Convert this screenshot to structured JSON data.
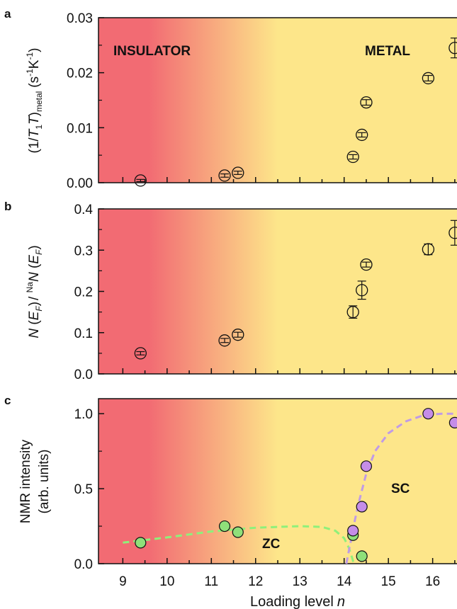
{
  "colors": {
    "insulator": "#f26b73",
    "metal": "#fde68a",
    "marker_open": "#ffffff",
    "marker_zc": "#8fe07a",
    "marker_sc": "#c58de8",
    "curve_zc": "#8ff07a",
    "curve_sc": "#c09be6",
    "axis": "#111111"
  },
  "xaxis": {
    "label": "Loading level",
    "label_italic": "n",
    "ticks": [
      "9",
      "10",
      "11",
      "12",
      "13",
      "14",
      "15",
      "16"
    ],
    "range": [
      8.45,
      16.55
    ]
  },
  "chart_data": [
    {
      "panel": "a",
      "type": "scatter",
      "ylabel": "(1/T1T)metal (s-1K-1)",
      "ylabel_parts": {
        "open": "(1/",
        "T": "T",
        "sub1": "1",
        "T2": "T",
        "close": ")",
        "sub": "metal",
        "unit": "(s",
        "sup1": "-1",
        "K": "K",
        "sup2": "-1",
        "end": ")"
      },
      "yticks": [
        "0.00",
        "0.01",
        "0.02",
        "0.03"
      ],
      "ylim": [
        0,
        0.03
      ],
      "annotations": [
        "INSULATOR",
        "METAL"
      ],
      "points": [
        {
          "x": 9.4,
          "y": 0.0004,
          "err": 0.0002
        },
        {
          "x": 11.3,
          "y": 0.0013,
          "err": 0.0003
        },
        {
          "x": 11.6,
          "y": 0.0018,
          "err": 0.0003
        },
        {
          "x": 14.2,
          "y": 0.0047,
          "err": 0.0004
        },
        {
          "x": 14.4,
          "y": 0.0087,
          "err": 0.0004
        },
        {
          "x": 14.5,
          "y": 0.0146,
          "err": 0.0005
        },
        {
          "x": 15.9,
          "y": 0.019,
          "err": 0.0005
        },
        {
          "x": 16.5,
          "y": 0.0245,
          "err": 0.0018
        }
      ]
    },
    {
      "panel": "b",
      "type": "scatter",
      "ylabel": "N(EF)/NaN(EF)",
      "ylabel_parts": {
        "N1": "N",
        "open1": " (",
        "E1": "E",
        "F1": "F",
        "close1": ")",
        "slash": "/ ",
        "sup": "Na",
        "N2": "N",
        "open2": " (",
        "E2": "E",
        "F2": "F",
        "close2": ")"
      },
      "yticks": [
        "0.0",
        "0.1",
        "0.2",
        "0.3",
        "0.4"
      ],
      "ylim": [
        0,
        0.4
      ],
      "points": [
        {
          "x": 9.4,
          "y": 0.05,
          "err": 0.004
        },
        {
          "x": 11.3,
          "y": 0.081,
          "err": 0.005
        },
        {
          "x": 11.6,
          "y": 0.095,
          "err": 0.006
        },
        {
          "x": 14.2,
          "y": 0.15,
          "err": 0.015
        },
        {
          "x": 14.4,
          "y": 0.203,
          "err": 0.022
        },
        {
          "x": 14.5,
          "y": 0.265,
          "err": 0.006
        },
        {
          "x": 15.9,
          "y": 0.302,
          "err": 0.013
        },
        {
          "x": 16.5,
          "y": 0.342,
          "err": 0.03
        }
      ]
    },
    {
      "panel": "c",
      "type": "scatter",
      "ylabel_line1": "NMR intensity",
      "ylabel_line2": "(arb. units)",
      "yticks": [
        "0.0",
        "0.5",
        "1.0"
      ],
      "ylim": [
        0,
        1.1
      ],
      "annotations": [
        "ZC",
        "SC"
      ],
      "series": [
        {
          "name": "ZC",
          "points": [
            {
              "x": 9.4,
              "y": 0.14
            },
            {
              "x": 11.3,
              "y": 0.25
            },
            {
              "x": 11.6,
              "y": 0.21
            },
            {
              "x": 14.2,
              "y": 0.19
            },
            {
              "x": 14.4,
              "y": 0.05
            }
          ],
          "curve": [
            [
              9.0,
              0.14
            ],
            [
              10.0,
              0.175
            ],
            [
              11.0,
              0.215
            ],
            [
              12.0,
              0.24
            ],
            [
              13.0,
              0.25
            ],
            [
              13.5,
              0.245
            ],
            [
              13.8,
              0.22
            ],
            [
              14.0,
              0.17
            ],
            [
              14.1,
              0.11
            ],
            [
              14.18,
              0.04
            ],
            [
              14.22,
              0.0
            ]
          ]
        },
        {
          "name": "SC",
          "points": [
            {
              "x": 14.2,
              "y": 0.22
            },
            {
              "x": 14.4,
              "y": 0.38
            },
            {
              "x": 14.5,
              "y": 0.65
            },
            {
              "x": 15.9,
              "y": 1.0
            },
            {
              "x": 16.5,
              "y": 0.94
            }
          ],
          "curve": [
            [
              14.05,
              0.0
            ],
            [
              14.15,
              0.15
            ],
            [
              14.25,
              0.3
            ],
            [
              14.35,
              0.43
            ],
            [
              14.5,
              0.6
            ],
            [
              14.7,
              0.75
            ],
            [
              15.0,
              0.87
            ],
            [
              15.4,
              0.95
            ],
            [
              15.8,
              0.99
            ],
            [
              16.2,
              1.0
            ],
            [
              16.55,
              1.0
            ]
          ]
        }
      ]
    }
  ]
}
